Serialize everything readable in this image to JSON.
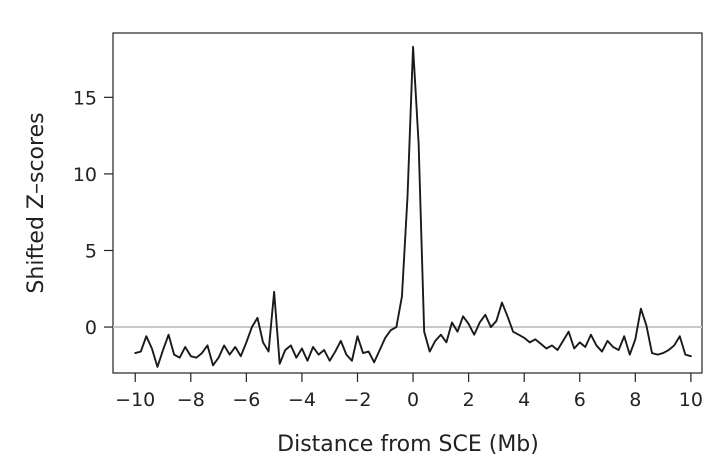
{
  "chart_data": {
    "type": "line",
    "title": "",
    "xlabel": "Distance from SCE (Mb)",
    "ylabel": "Shifted Z–scores",
    "xlim": [
      -10.8,
      10.4
    ],
    "ylim": [
      -3.0,
      19.2
    ],
    "xticks": [
      -10,
      -8,
      -6,
      -4,
      -2,
      0,
      2,
      4,
      6,
      8,
      10
    ],
    "xtick_labels": [
      "−10",
      "−8",
      "−6",
      "−4",
      "−2",
      "0",
      "2",
      "4",
      "6",
      "8",
      "10"
    ],
    "yticks": [
      0,
      5,
      10,
      15
    ],
    "ytick_labels": [
      "0",
      "5",
      "10",
      "15"
    ],
    "reference_line": {
      "y": 0,
      "color": "#c8c8c8"
    },
    "grid": false,
    "line_color": "#1a1a1a",
    "series": [
      {
        "x": [
          -10.0,
          -9.8,
          -9.6,
          -9.4,
          -9.2,
          -9.0,
          -8.8,
          -8.6,
          -8.4,
          -8.2,
          -8.0,
          -7.8,
          -7.6,
          -7.4,
          -7.2,
          -7.0,
          -6.8,
          -6.6,
          -6.4,
          -6.2,
          -6.0,
          -5.8,
          -5.6,
          -5.4,
          -5.2,
          -5.0,
          -4.8,
          -4.6,
          -4.4,
          -4.2,
          -4.0,
          -3.8,
          -3.6,
          -3.4,
          -3.2,
          -3.0,
          -2.8,
          -2.6,
          -2.4,
          -2.2,
          -2.0,
          -1.8,
          -1.6,
          -1.4,
          -1.2,
          -1.0,
          -0.8,
          -0.6,
          -0.4,
          -0.2,
          0.0,
          0.2,
          0.4,
          0.6,
          0.8,
          1.0,
          1.2,
          1.4,
          1.6,
          1.8,
          2.0,
          2.2,
          2.4,
          2.6,
          2.8,
          3.0,
          3.2,
          3.4,
          3.6,
          3.8,
          4.0,
          4.2,
          4.4,
          4.6,
          4.8,
          5.0,
          5.2,
          5.4,
          5.6,
          5.8,
          6.0,
          6.2,
          6.4,
          6.6,
          6.8,
          7.0,
          7.2,
          7.4,
          7.6,
          7.8,
          8.0,
          8.2,
          8.4,
          8.6,
          8.8,
          9.0,
          9.2,
          9.4,
          9.6,
          9.8,
          10.0
        ],
        "values": [
          -1.7,
          -1.6,
          -0.6,
          -1.4,
          -2.6,
          -1.5,
          -0.5,
          -1.8,
          -2.0,
          -1.3,
          -1.9,
          -2.0,
          -1.7,
          -1.2,
          -2.5,
          -2.0,
          -1.2,
          -1.8,
          -1.3,
          -1.9,
          -1.0,
          0.0,
          0.6,
          -1.0,
          -1.6,
          2.3,
          -2.4,
          -1.5,
          -1.2,
          -2.0,
          -1.4,
          -2.2,
          -1.3,
          -1.8,
          -1.5,
          -2.2,
          -1.6,
          -0.9,
          -1.8,
          -2.2,
          -0.6,
          -1.7,
          -1.6,
          -2.3,
          -1.5,
          -0.7,
          -0.2,
          0.0,
          2.0,
          8.5,
          18.3,
          12.0,
          -0.3,
          -1.6,
          -0.9,
          -0.5,
          -1.0,
          0.3,
          -0.3,
          0.7,
          0.2,
          -0.5,
          0.3,
          0.8,
          0.0,
          0.4,
          1.6,
          0.7,
          -0.3,
          -0.5,
          -0.7,
          -1.0,
          -0.8,
          -1.1,
          -1.4,
          -1.2,
          -1.5,
          -0.9,
          -0.3,
          -1.4,
          -1.0,
          -1.3,
          -0.5,
          -1.2,
          -1.6,
          -0.9,
          -1.3,
          -1.5,
          -0.6,
          -1.8,
          -0.8,
          1.2,
          0.1,
          -1.7,
          -1.8,
          -1.7,
          -1.5,
          -1.2,
          -0.6,
          -1.8,
          -1.9
        ]
      }
    ]
  }
}
